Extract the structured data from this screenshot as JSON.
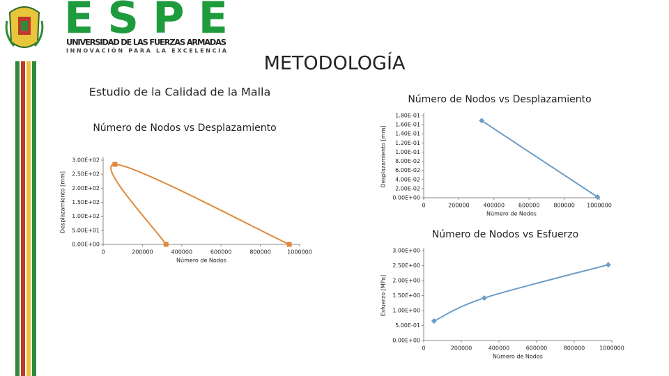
{
  "slide": {
    "logo_text": "ESPE",
    "university": "UNIVERSIDAD DE LAS FUERZAS ARMADAS",
    "motto": "INNOVACIÓN PARA LA EXCELENCIA",
    "title": "METODOLOGÍA",
    "subtitle": "Estudio de la Calidad de la Malla"
  },
  "chart_data": [
    {
      "type": "scatter",
      "smooth": true,
      "marker": "square",
      "title": "Número de Nodos vs Desplazamiento",
      "x_label": "Número de Nodos",
      "y_label": "Desplazamiento [mm]",
      "x": [
        320000,
        60000,
        947000
      ],
      "series": [
        {
          "color": "#e0883a",
          "values": [
            0.17,
            285,
            0.003
          ]
        }
      ],
      "xlim": [
        0,
        1000000
      ],
      "xticks": [
        0,
        200000,
        400000,
        600000,
        800000,
        1000000
      ],
      "ylim": [
        0,
        300
      ],
      "yticks": [
        {
          "value": 0,
          "label": "0.00E+00"
        },
        {
          "value": 50,
          "label": "5.00E+01"
        },
        {
          "value": 100,
          "label": "1.00E+02"
        },
        {
          "value": 150,
          "label": "1.50E+02"
        },
        {
          "value": 200,
          "label": "2.00E+02"
        },
        {
          "value": 250,
          "label": "2.50E+02"
        },
        {
          "value": 300,
          "label": "3.00E+02"
        }
      ]
    },
    {
      "type": "scatter",
      "smooth": false,
      "marker": "diamond",
      "title": "Número de Nodos vs Desplazamiento",
      "x_label": "Número de Nodos",
      "y_label": "Desplazamiento [mm]",
      "x": [
        330000,
        990000
      ],
      "series": [
        {
          "color": "#6c9cc8",
          "values": [
            0.169,
            0.0015
          ]
        }
      ],
      "xlim": [
        0,
        1000000
      ],
      "xticks": [
        0,
        200000,
        400000,
        600000,
        800000,
        1000000
      ],
      "ylim": [
        0,
        0.18
      ],
      "yticks": [
        {
          "value": 0,
          "label": "0.00E+00"
        },
        {
          "value": 0.02,
          "label": "2.00E-02"
        },
        {
          "value": 0.04,
          "label": "4.00E-02"
        },
        {
          "value": 0.06,
          "label": "6.00E-02"
        },
        {
          "value": 0.08,
          "label": "8.00E-02"
        },
        {
          "value": 0.1,
          "label": "1.00E-01"
        },
        {
          "value": 0.12,
          "label": "1.20E-01"
        },
        {
          "value": 0.14,
          "label": "1.40E-01"
        },
        {
          "value": 0.16,
          "label": "1.60E-01"
        },
        {
          "value": 0.18,
          "label": "1.80E-01"
        }
      ]
    },
    {
      "type": "scatter",
      "smooth": true,
      "marker": "diamond",
      "title": "Número de Nodos vs Esfuerzo",
      "x_label": "Número de Nodos",
      "y_label": "Esfuerzo [MPa]",
      "x": [
        55000,
        322000,
        981000
      ],
      "series": [
        {
          "color": "#6c9cc8",
          "values": [
            0.65,
            1.42,
            2.53
          ]
        }
      ],
      "xlim": [
        0,
        1000000
      ],
      "xticks": [
        0,
        200000,
        400000,
        600000,
        800000,
        1000000
      ],
      "ylim": [
        0,
        3
      ],
      "yticks": [
        {
          "value": 0,
          "label": "0.00E+00"
        },
        {
          "value": 0.5,
          "label": "5.00E-01"
        },
        {
          "value": 1,
          "label": "1.00E+00"
        },
        {
          "value": 1.5,
          "label": "1.50E+00"
        },
        {
          "value": 2,
          "label": "2.00E+00"
        },
        {
          "value": 2.5,
          "label": "2.50E+00"
        },
        {
          "value": 3,
          "label": "3.00E+00"
        }
      ]
    }
  ]
}
